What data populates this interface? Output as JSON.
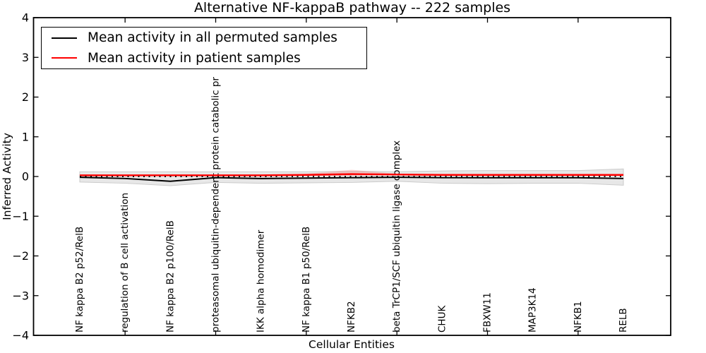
{
  "figure": {
    "title": "Alternative NF-kappaB pathway -- 222 samples",
    "xlabel": "Cellular Entities",
    "ylabel": "Inferred Activity"
  },
  "legend": {
    "entries": [
      {
        "label": "Mean activity in all permuted samples",
        "color": "#000000"
      },
      {
        "label": "Mean activity in patient samples",
        "color": "#ff0000"
      }
    ]
  },
  "chart_data": {
    "type": "line",
    "title": "Alternative NF-kappaB pathway -- 222 samples",
    "xlabel": "Cellular Entities",
    "ylabel": "Inferred Activity",
    "ylim": [
      -4,
      4
    ],
    "yticks": [
      4,
      3,
      2,
      1,
      0,
      -1,
      -2,
      -3,
      -4
    ],
    "grid": false,
    "legend_position": "upper left",
    "categories": [
      "NF kappa B2 p52/RelB",
      "regulation of B cell activation",
      "NF kappa B2 p100/RelB",
      "proteasomal ubiquitin-dependent protein catabolic pr",
      "IKK alpha homodimer",
      "NF kappa B1 p50/RelB",
      "NFKB2",
      "beta TrCP1/SCF ubiquitin ligase complex",
      "CHUK",
      "FBXW11",
      "MAP3K14",
      "NFKB1",
      "RELB"
    ],
    "series": [
      {
        "name": "Mean activity in all permuted samples",
        "color": "#000000",
        "style": "solid",
        "values": [
          -0.02,
          -0.05,
          -0.12,
          -0.03,
          -0.05,
          -0.04,
          -0.03,
          -0.02,
          -0.03,
          -0.03,
          -0.03,
          -0.03,
          -0.05
        ]
      },
      {
        "name": "Mean activity in patient samples",
        "color": "#ff0000",
        "style": "solid",
        "values": [
          0.03,
          0.03,
          0.03,
          0.03,
          0.03,
          0.04,
          0.06,
          0.05,
          0.04,
          0.04,
          0.04,
          0.04,
          0.04
        ]
      },
      {
        "name": "zero-reference",
        "color": "#000000",
        "style": "dotted",
        "values": [
          0,
          0,
          0,
          0,
          0,
          0,
          0,
          0,
          0,
          0,
          0,
          0,
          0
        ]
      }
    ],
    "bands": [
      {
        "name": "permuted-samples-range",
        "fill": "#e7e7e7",
        "edge": "#cbcbcb",
        "upper": [
          0.12,
          0.12,
          0.12,
          0.12,
          0.12,
          0.12,
          0.13,
          0.12,
          0.14,
          0.15,
          0.15,
          0.15,
          0.19
        ],
        "lower": [
          -0.14,
          -0.17,
          -0.23,
          -0.15,
          -0.17,
          -0.16,
          -0.15,
          -0.12,
          -0.17,
          -0.18,
          -0.17,
          -0.17,
          -0.22
        ]
      },
      {
        "name": "patient-samples-range",
        "fill": "rgba(255,0,0,0.16)",
        "edge": "none",
        "upper": [
          0.05,
          0.05,
          0.05,
          0.05,
          0.05,
          0.07,
          0.17,
          0.07,
          0.06,
          0.06,
          0.06,
          0.06,
          0.06
        ],
        "lower": [
          0.01,
          0.01,
          0.01,
          0.01,
          0.01,
          0.02,
          0.02,
          0.03,
          0.03,
          0.03,
          0.03,
          0.03,
          0.03
        ]
      }
    ]
  }
}
